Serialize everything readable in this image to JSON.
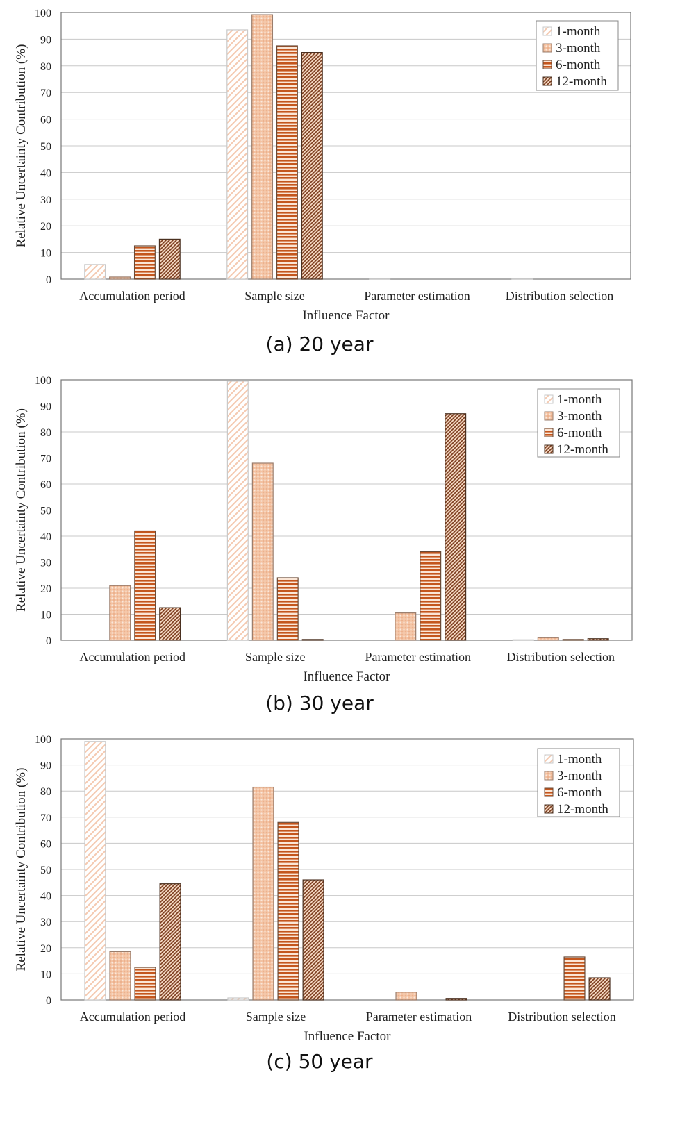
{
  "chart_data": [
    {
      "type": "bar",
      "caption": "(a) 20 year",
      "xlabel": "Influence  Factor",
      "ylabel": "Relative  Uncertainty  Contribution  (%)",
      "ylim": [
        0,
        100
      ],
      "yticks": [
        0,
        10,
        20,
        30,
        40,
        50,
        60,
        70,
        80,
        90,
        100
      ],
      "grid": true,
      "legend_position": "top-right",
      "categories": [
        "Accumulation period",
        "Sample size",
        "Parameter estimation",
        "Distribution selection"
      ],
      "series": [
        {
          "name": "1-month",
          "values": [
            5.5,
            93.5,
            0.2,
            0.2
          ]
        },
        {
          "name": "3-month",
          "values": [
            0.8,
            99.2,
            0,
            0
          ]
        },
        {
          "name": "6-month",
          "values": [
            12.5,
            87.5,
            0,
            0
          ]
        },
        {
          "name": "12-month",
          "values": [
            15,
            85,
            0,
            0
          ]
        }
      ]
    },
    {
      "type": "bar",
      "caption": "(b) 30 year",
      "xlabel": "Influence  Factor",
      "ylabel": "Relative  Uncertainty  Contribution  (%)",
      "ylim": [
        0,
        100
      ],
      "yticks": [
        0,
        10,
        20,
        30,
        40,
        50,
        60,
        70,
        80,
        90,
        100
      ],
      "grid": true,
      "legend_position": "top-right",
      "categories": [
        "Accumulation period",
        "Sample size",
        "Parameter estimation",
        "Distribution selection"
      ],
      "series": [
        {
          "name": "1-month",
          "values": [
            0,
            99.5,
            0,
            0.2
          ]
        },
        {
          "name": "3-month",
          "values": [
            21,
            68,
            10.5,
            1
          ]
        },
        {
          "name": "6-month",
          "values": [
            42,
            24,
            34,
            0.3
          ]
        },
        {
          "name": "12-month",
          "values": [
            12.5,
            0.3,
            87,
            0.6
          ]
        }
      ]
    },
    {
      "type": "bar",
      "caption": "(c) 50 year",
      "xlabel": "Influence  Factor",
      "ylabel": "Relative  Uncertainty  Contribution  (%)",
      "ylim": [
        0,
        100
      ],
      "yticks": [
        0,
        10,
        20,
        30,
        40,
        50,
        60,
        70,
        80,
        90,
        100
      ],
      "grid": true,
      "legend_position": "top-right",
      "categories": [
        "Accumulation period",
        "Sample size",
        "Parameter estimation",
        "Distribution selection"
      ],
      "series": [
        {
          "name": "1-month",
          "values": [
            99,
            0.8,
            0,
            0
          ]
        },
        {
          "name": "3-month",
          "values": [
            18.5,
            81.5,
            3,
            0
          ]
        },
        {
          "name": "6-month",
          "values": [
            12.5,
            68,
            0,
            16.5
          ]
        },
        {
          "name": "12-month",
          "values": [
            44.5,
            46,
            0.6,
            8.5
          ]
        }
      ]
    }
  ]
}
